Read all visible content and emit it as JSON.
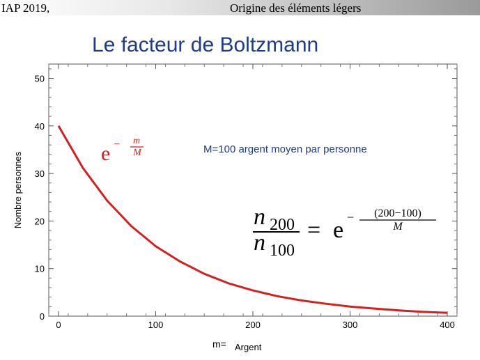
{
  "header": {
    "left_text": "IAP 2019,",
    "right_text": "Origine des éléments légers"
  },
  "slide": {
    "title": "Le facteur de Boltzmann"
  },
  "annotations": {
    "M_note": "M=100  argent moyen par personne",
    "xlabel_prefix": "m=",
    "formula_exp": {
      "base": "e",
      "exponent_sign": "−",
      "num": "m",
      "den": "M",
      "color": "#d42020"
    },
    "formula_ratio": {
      "num_var": "n",
      "num_sub": "200",
      "den_var": "n",
      "den_sub": "100",
      "equals": "=",
      "base": "e",
      "exponent_sign": "−",
      "exp_num": "(200−100)",
      "exp_den": "M"
    }
  },
  "chart_data": {
    "type": "line",
    "title": "",
    "xlabel": "Argent",
    "ylabel": "Nombre personnes",
    "xlim": [
      -10,
      410
    ],
    "ylim": [
      0,
      53
    ],
    "xticks": [
      0,
      100,
      200,
      300,
      400
    ],
    "yticks": [
      0,
      10,
      20,
      30,
      40,
      50
    ],
    "grid": false,
    "series": [
      {
        "function": "40*exp(-x/100)",
        "x": [
          0,
          25,
          50,
          75,
          100,
          125,
          150,
          175,
          200,
          225,
          250,
          275,
          300,
          325,
          350,
          375,
          400
        ],
        "values": [
          40,
          31.2,
          24.3,
          18.9,
          14.7,
          11.5,
          8.9,
          6.9,
          5.4,
          4.2,
          3.3,
          2.6,
          2.0,
          1.6,
          1.2,
          0.9,
          0.7
        ],
        "color": "#d42020"
      }
    ]
  }
}
